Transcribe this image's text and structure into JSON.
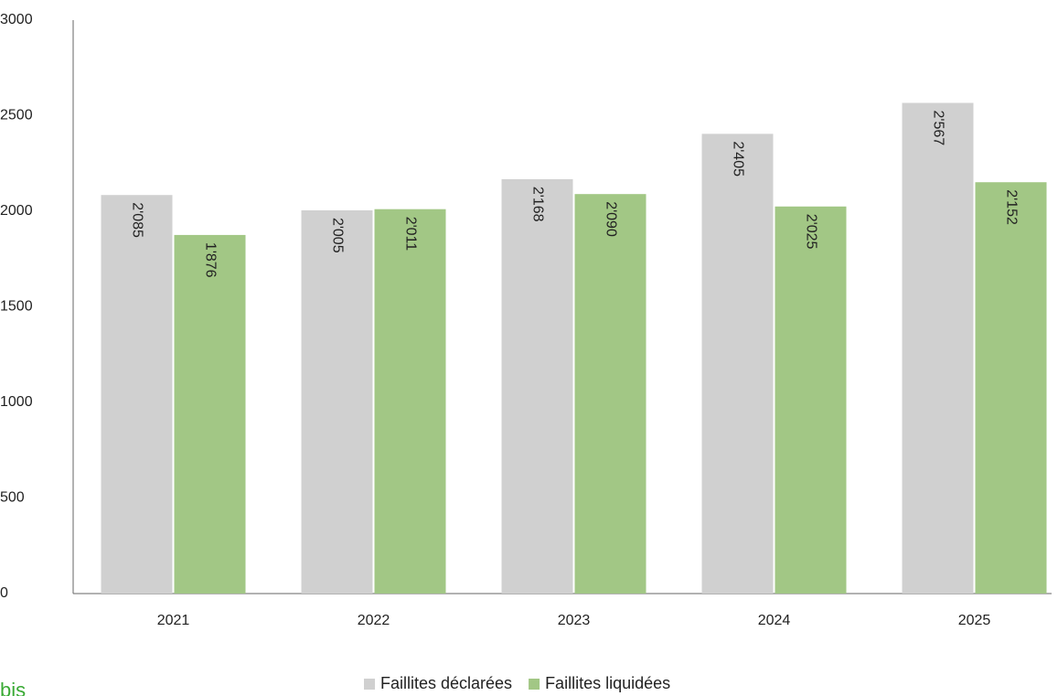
{
  "chart_data": {
    "type": "bar",
    "categories": [
      "2021",
      "2022",
      "2023",
      "2024",
      "2025"
    ],
    "series": [
      {
        "name": "Faillites déclarées",
        "color": "#d0d0d0",
        "values": [
          2085,
          2005,
          2168,
          2405,
          2567
        ],
        "value_labels": [
          "2'085",
          "2'005",
          "2'168",
          "2'405",
          "2'567"
        ]
      },
      {
        "name": "Faillites liquidées",
        "color": "#a2c785",
        "values": [
          1876,
          2011,
          2090,
          2025,
          2152
        ],
        "value_labels": [
          "1'876",
          "2'011",
          "2'090",
          "2'025",
          "2'152"
        ]
      }
    ],
    "ylim": [
      0,
      3000
    ],
    "yticks": [
      0,
      500,
      1000,
      1500,
      2000,
      2500,
      3000
    ],
    "grid": false,
    "legend": "bottom",
    "annotation": "bis"
  }
}
